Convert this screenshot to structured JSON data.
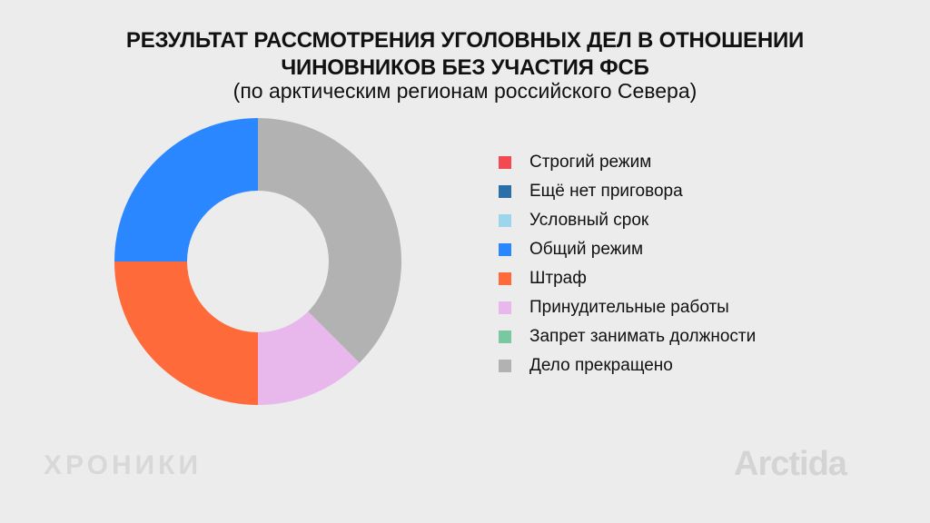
{
  "header": {
    "title_line1": "РЕЗУЛЬТАТ РАССМОТРЕНИЯ УГОЛОВНЫХ ДЕЛ В ОТНОШЕНИИ",
    "title_line2": "ЧИНОВНИКОВ БЕЗ УЧАСТИЯ ФСБ",
    "subtitle": "(по арктическим регионам российского Севера)"
  },
  "chart_data": {
    "type": "pie",
    "donut": true,
    "title": "РЕЗУЛЬТАТ РАССМОТРЕНИЯ УГОЛОВНЫХ ДЕЛ В ОТНОШЕНИИ ЧИНОВНИКОВ БЕЗ УЧАСТИЯ ФСБ",
    "subtitle": "(по арктическим регионам российского Севера)",
    "legend_position": "right",
    "categories": [
      "Строгий режим",
      "Ещё нет приговора",
      "Условный срок",
      "Общий режим",
      "Штраф",
      "Принудительные работы",
      "Запрет занимать должности",
      "Дело прекращено"
    ],
    "values": [
      0,
      0,
      0,
      25,
      25,
      12.5,
      0,
      37.5
    ],
    "colors": [
      "#f24a50",
      "#2b6fa8",
      "#9dd6ec",
      "#2b87ff",
      "#ff6a3a",
      "#e8b8ec",
      "#79c8a0",
      "#b2b2b2"
    ]
  },
  "watermarks": {
    "left": "ХРОНИКИ",
    "right": "Arctida"
  }
}
